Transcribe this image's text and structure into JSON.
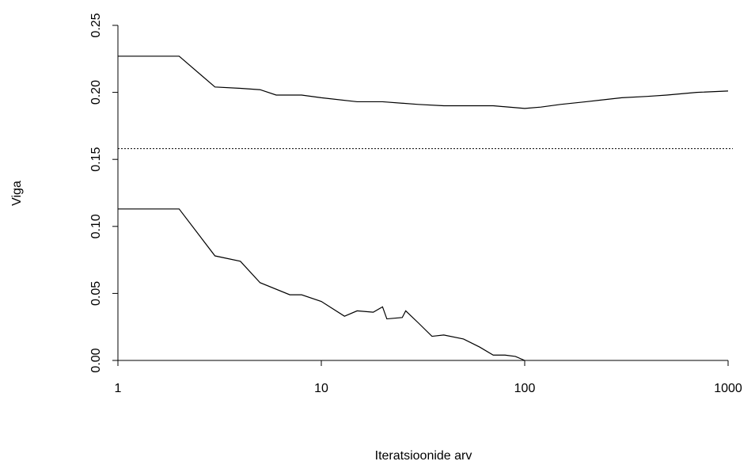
{
  "chart_data": {
    "type": "line",
    "xlabel": "Iteratsioonide arv",
    "ylabel": "Viga",
    "log_x": true,
    "xlim": [
      1,
      1000
    ],
    "xticks": [
      1,
      10,
      100,
      1000
    ],
    "ylim": [
      0,
      0.25
    ],
    "yticks": [
      {
        "value": 0,
        "label": "0.00"
      },
      0.05,
      {
        "value": 0.1,
        "label": "0.10"
      },
      0.15,
      {
        "value": 0.2,
        "label": "0.20"
      },
      0.25
    ],
    "series": [
      {
        "color": "#000000",
        "x": [
          1,
          2,
          3,
          4,
          5,
          6,
          8,
          10,
          15,
          20,
          30,
          40,
          50,
          70,
          100,
          120,
          150,
          200,
          300,
          400,
          500,
          700,
          1000
        ],
        "values": [
          0.227,
          0.227,
          0.204,
          0.203,
          0.202,
          0.198,
          0.198,
          0.196,
          0.193,
          0.193,
          0.191,
          0.19,
          0.19,
          0.19,
          0.188,
          0.189,
          0.191,
          0.193,
          0.196,
          0.197,
          0.198,
          0.2,
          0.201
        ]
      },
      {
        "color": "#000000",
        "x": [
          1,
          2,
          3,
          4,
          5,
          7,
          8,
          10,
          13,
          15,
          18,
          20,
          21,
          25,
          26,
          30,
          35,
          40,
          50,
          60,
          70,
          80,
          90,
          100
        ],
        "values": [
          0.113,
          0.113,
          0.078,
          0.074,
          0.058,
          0.049,
          0.049,
          0.044,
          0.033,
          0.037,
          0.036,
          0.04,
          0.031,
          0.032,
          0.037,
          0.028,
          0.018,
          0.019,
          0.016,
          0.01,
          0.004,
          0.004,
          0.003,
          0.0
        ]
      }
    ],
    "reference_line": {
      "value": 0.158,
      "style": "dotted",
      "color": "#000000"
    }
  }
}
